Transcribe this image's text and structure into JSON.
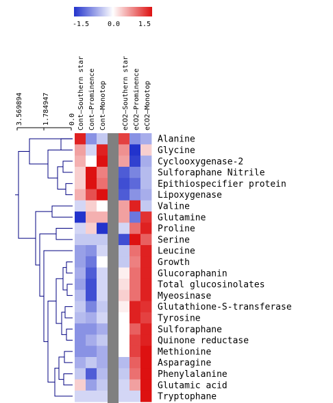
{
  "chart_data": {
    "type": "heatmap",
    "colorbar": {
      "ticks": [
        "-1.5",
        "0.0",
        "1.5"
      ],
      "min": -1.5,
      "max": 1.5,
      "colors": {
        "low": "#2233cc",
        "mid": "#ffffff",
        "high": "#dd1111"
      }
    },
    "gap_color": "#808080",
    "dendrogram_ticks": [
      "3.569894",
      "1.784947",
      "0.0"
    ],
    "dendrogram_color": "#000080",
    "columns": [
      "Cont–Southern star",
      "Cont–Prominence",
      "Cont–Monotop",
      "eCO2–Southern star",
      "eCO2–Prominence",
      "eCO2–Monotop"
    ],
    "rows": [
      "Alanine",
      "Glycine",
      "Cyclooxygenase-2",
      "Sulforaphane Nitrile",
      "Epithiospecifier protein",
      "Lipoxygenase",
      "Valine",
      "Glutamine",
      "Proline",
      "Serine",
      "Leucine",
      "Growth",
      "Glucoraphanin",
      "Total glucosinolates",
      "Myeosinase",
      "Glutathione-S-transferase",
      "Tyrosine",
      "Sulforaphane",
      "Quinone reductase",
      "Methionine",
      "Asparagine",
      "Phenylalanine",
      "Glutamic acid",
      "Tryptophane"
    ],
    "values": [
      [
        1.4,
        -0.8,
        -0.4,
        1.2,
        -0.8,
        -0.6
      ],
      [
        0.6,
        -0.3,
        1.4,
        0.7,
        -1.5,
        0.3
      ],
      [
        0.5,
        0.0,
        1.5,
        0.6,
        -1.4,
        -0.6
      ],
      [
        0.3,
        1.5,
        0.8,
        -1.2,
        -0.9,
        -0.5
      ],
      [
        0.3,
        1.5,
        0.9,
        -1.3,
        -1.1,
        -0.5
      ],
      [
        0.5,
        1.1,
        1.5,
        -1.2,
        -0.8,
        -0.6
      ],
      [
        -0.3,
        0.3,
        0.0,
        0.6,
        1.4,
        -0.4
      ],
      [
        -1.5,
        0.5,
        0.5,
        0.6,
        -1.0,
        1.3
      ],
      [
        -0.3,
        0.3,
        -1.5,
        -0.3,
        0.9,
        1.4
      ],
      [
        -0.4,
        -0.4,
        -0.4,
        -1.3,
        1.5,
        1.0
      ],
      [
        -0.7,
        -0.8,
        -0.3,
        -0.4,
        0.9,
        1.4
      ],
      [
        -0.7,
        -1.0,
        0.0,
        -0.4,
        0.8,
        1.4
      ],
      [
        -0.6,
        -1.2,
        -0.3,
        0.1,
        0.9,
        1.4
      ],
      [
        -0.7,
        -1.3,
        -0.3,
        0.2,
        0.9,
        1.4
      ],
      [
        -0.5,
        -1.3,
        -0.3,
        0.3,
        0.9,
        1.4
      ],
      [
        -0.4,
        -0.9,
        -0.4,
        0.1,
        1.4,
        1.3
      ],
      [
        -0.5,
        -0.6,
        -0.3,
        0.0,
        1.4,
        1.2
      ],
      [
        -0.8,
        -0.8,
        -0.6,
        0.0,
        1.0,
        1.4
      ],
      [
        -0.8,
        -0.6,
        -0.4,
        0.0,
        1.2,
        1.4
      ],
      [
        -0.8,
        -0.8,
        -0.6,
        0.0,
        1.2,
        1.5
      ],
      [
        -0.6,
        -0.4,
        -0.6,
        -0.5,
        1.0,
        1.5
      ],
      [
        -0.4,
        -1.2,
        -0.5,
        -0.4,
        0.9,
        1.5
      ],
      [
        0.3,
        -0.7,
        -0.4,
        -0.3,
        0.6,
        1.5
      ],
      [
        -0.3,
        -0.3,
        -0.3,
        -0.3,
        -0.3,
        1.5
      ]
    ]
  }
}
